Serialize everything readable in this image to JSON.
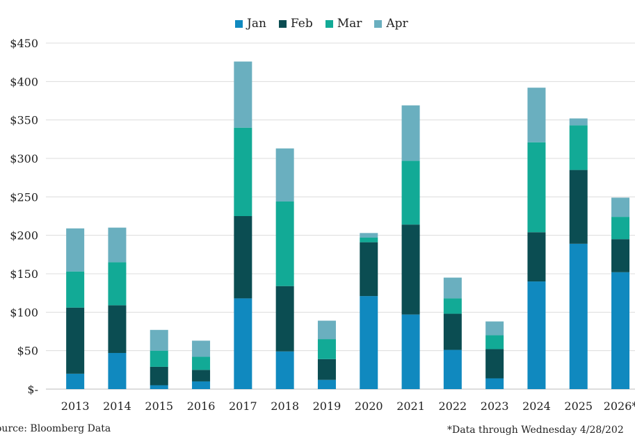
{
  "chart_data": {
    "type": "bar",
    "stacked": true,
    "categories": [
      "2013",
      "2014",
      "2015",
      "2016",
      "2017",
      "2018",
      "2019",
      "2020",
      "2021",
      "2022",
      "2023",
      "2024",
      "2025",
      "2026*"
    ],
    "series": [
      {
        "name": "Jan",
        "color": "#1089bf",
        "values": [
          20,
          47,
          5,
          10,
          118,
          49,
          12,
          121,
          97,
          51,
          14,
          140,
          189,
          152
        ]
      },
      {
        "name": "Feb",
        "color": "#0b4d52",
        "values": [
          86,
          62,
          24,
          15,
          107,
          85,
          27,
          70,
          117,
          47,
          38,
          64,
          96,
          43
        ]
      },
      {
        "name": "Mar",
        "color": "#12aa96",
        "values": [
          47,
          56,
          21,
          17,
          115,
          110,
          26,
          6,
          83,
          20,
          18,
          117,
          58,
          29
        ]
      },
      {
        "name": "Apr",
        "color": "#6aafbf",
        "values": [
          56,
          45,
          27,
          21,
          86,
          69,
          24,
          6,
          72,
          27,
          18,
          71,
          9,
          25
        ]
      }
    ],
    "ylim": [
      0,
      450
    ],
    "yticks": [
      0,
      50,
      100,
      150,
      200,
      250,
      300,
      350,
      400,
      450
    ],
    "ytick_labels": [
      "$-",
      "$50",
      "$100",
      "$150",
      "$200",
      "$250",
      "$300",
      "$350",
      "$400",
      "$450"
    ],
    "grid": true,
    "legend_position": "top-center",
    "source": "ource: Bloomberg Data",
    "note": "*Data through Wednesday 4/28/202"
  }
}
